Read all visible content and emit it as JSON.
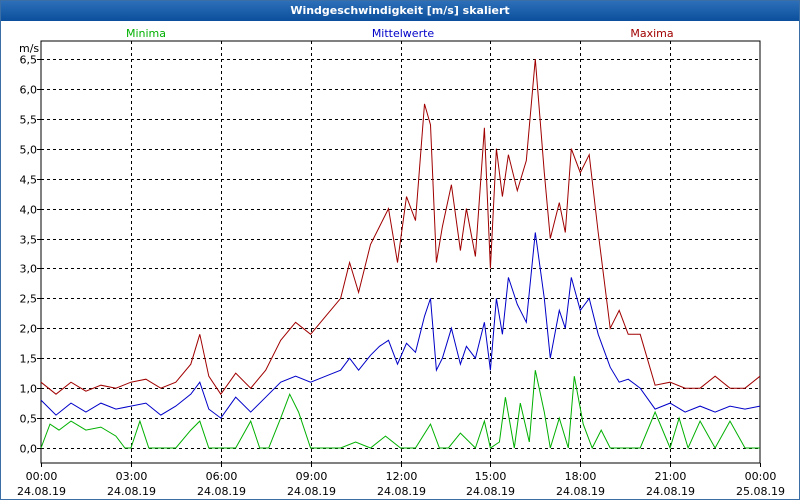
{
  "window": {
    "title": "Windgeschwindigkeit [m/s] skaliert"
  },
  "colors": {
    "minima": "#00b000",
    "mittelwerte": "#0000c8",
    "maxima": "#a00000",
    "title_bar": "#0b4f9c"
  },
  "chart_data": {
    "type": "line",
    "title": "Windgeschwindigkeit [m/s] skaliert",
    "ylabel": "m/s",
    "ylim": [
      -0.25,
      6.8
    ],
    "yticks": [
      "6,5",
      "6,0",
      "5,5",
      "5,0",
      "4,5",
      "4,0",
      "3,5",
      "3,0",
      "2,5",
      "2,0",
      "1,5",
      "1,0",
      "0,5",
      "0,0"
    ],
    "ytick_values": [
      6.5,
      6.0,
      5.5,
      5.0,
      4.5,
      4.0,
      3.5,
      3.0,
      2.5,
      2.0,
      1.5,
      1.0,
      0.5,
      0.0
    ],
    "xlim_hours": [
      0,
      24
    ],
    "x_tick_hours": [
      0,
      3,
      6,
      9,
      12,
      15,
      18,
      21,
      24
    ],
    "xticks": [
      {
        "time": "00:00",
        "date": "24.08.19"
      },
      {
        "time": "03:00",
        "date": "24.08.19"
      },
      {
        "time": "06:00",
        "date": "24.08.19"
      },
      {
        "time": "09:00",
        "date": "24.08.19"
      },
      {
        "time": "12:00",
        "date": "24.08.19"
      },
      {
        "time": "15:00",
        "date": "24.08.19"
      },
      {
        "time": "18:00",
        "date": "24.08.19"
      },
      {
        "time": "21:00",
        "date": "24.08.19"
      },
      {
        "time": "00:00",
        "date": "25.08.19"
      }
    ],
    "grid": true,
    "legend": [
      "Minima",
      "Mittelwerte",
      "Maxima"
    ],
    "series": [
      {
        "name": "Maxima",
        "color": "#a00000",
        "points": [
          [
            0,
            1.1
          ],
          [
            0.5,
            0.9
          ],
          [
            1,
            1.1
          ],
          [
            1.5,
            0.95
          ],
          [
            2,
            1.05
          ],
          [
            2.5,
            1.0
          ],
          [
            3,
            1.1
          ],
          [
            3.5,
            1.15
          ],
          [
            4,
            1.0
          ],
          [
            4.5,
            1.1
          ],
          [
            5,
            1.4
          ],
          [
            5.3,
            1.9
          ],
          [
            5.6,
            1.2
          ],
          [
            6,
            0.9
          ],
          [
            6.5,
            1.25
          ],
          [
            7,
            1.0
          ],
          [
            7.5,
            1.3
          ],
          [
            8,
            1.8
          ],
          [
            8.5,
            2.1
          ],
          [
            9,
            1.9
          ],
          [
            9.5,
            2.2
          ],
          [
            10,
            2.5
          ],
          [
            10.3,
            3.1
          ],
          [
            10.6,
            2.6
          ],
          [
            11,
            3.4
          ],
          [
            11.3,
            3.7
          ],
          [
            11.6,
            4.0
          ],
          [
            11.9,
            3.1
          ],
          [
            12.2,
            4.2
          ],
          [
            12.5,
            3.8
          ],
          [
            12.8,
            5.75
          ],
          [
            13.0,
            5.4
          ],
          [
            13.2,
            3.1
          ],
          [
            13.4,
            3.7
          ],
          [
            13.7,
            4.4
          ],
          [
            14.0,
            3.3
          ],
          [
            14.2,
            4.0
          ],
          [
            14.5,
            3.2
          ],
          [
            14.8,
            5.35
          ],
          [
            15.0,
            3.0
          ],
          [
            15.2,
            5.0
          ],
          [
            15.4,
            4.2
          ],
          [
            15.6,
            4.9
          ],
          [
            15.9,
            4.3
          ],
          [
            16.2,
            4.8
          ],
          [
            16.5,
            6.5
          ],
          [
            16.8,
            4.6
          ],
          [
            17.0,
            3.5
          ],
          [
            17.3,
            4.1
          ],
          [
            17.5,
            3.6
          ],
          [
            17.7,
            5.0
          ],
          [
            18.0,
            4.6
          ],
          [
            18.3,
            4.9
          ],
          [
            18.6,
            3.6
          ],
          [
            19.0,
            2.0
          ],
          [
            19.3,
            2.3
          ],
          [
            19.6,
            1.9
          ],
          [
            20.0,
            1.9
          ],
          [
            20.5,
            1.05
          ],
          [
            21,
            1.1
          ],
          [
            21.5,
            1.0
          ],
          [
            22,
            1.0
          ],
          [
            22.5,
            1.2
          ],
          [
            23,
            1.0
          ],
          [
            23.5,
            1.0
          ],
          [
            24,
            1.2
          ]
        ]
      },
      {
        "name": "Mittelwerte",
        "color": "#0000c8",
        "points": [
          [
            0,
            0.8
          ],
          [
            0.5,
            0.55
          ],
          [
            1,
            0.75
          ],
          [
            1.5,
            0.6
          ],
          [
            2,
            0.75
          ],
          [
            2.5,
            0.65
          ],
          [
            3,
            0.7
          ],
          [
            3.5,
            0.75
          ],
          [
            4,
            0.55
          ],
          [
            4.5,
            0.7
          ],
          [
            5,
            0.9
          ],
          [
            5.3,
            1.1
          ],
          [
            5.6,
            0.65
          ],
          [
            6,
            0.5
          ],
          [
            6.5,
            0.85
          ],
          [
            7,
            0.6
          ],
          [
            7.5,
            0.85
          ],
          [
            8,
            1.1
          ],
          [
            8.5,
            1.2
          ],
          [
            9,
            1.1
          ],
          [
            9.5,
            1.2
          ],
          [
            10,
            1.3
          ],
          [
            10.3,
            1.5
          ],
          [
            10.6,
            1.3
          ],
          [
            11,
            1.55
          ],
          [
            11.3,
            1.7
          ],
          [
            11.6,
            1.8
          ],
          [
            11.9,
            1.4
          ],
          [
            12.2,
            1.75
          ],
          [
            12.5,
            1.6
          ],
          [
            12.8,
            2.2
          ],
          [
            13.0,
            2.5
          ],
          [
            13.2,
            1.3
          ],
          [
            13.4,
            1.5
          ],
          [
            13.7,
            2.0
          ],
          [
            14.0,
            1.4
          ],
          [
            14.2,
            1.7
          ],
          [
            14.5,
            1.5
          ],
          [
            14.8,
            2.1
          ],
          [
            15.0,
            1.3
          ],
          [
            15.2,
            2.5
          ],
          [
            15.4,
            1.9
          ],
          [
            15.6,
            2.85
          ],
          [
            15.9,
            2.4
          ],
          [
            16.2,
            2.1
          ],
          [
            16.5,
            3.6
          ],
          [
            16.8,
            2.5
          ],
          [
            17.0,
            1.5
          ],
          [
            17.3,
            2.3
          ],
          [
            17.5,
            2.0
          ],
          [
            17.7,
            2.85
          ],
          [
            18.0,
            2.3
          ],
          [
            18.3,
            2.5
          ],
          [
            18.6,
            1.9
          ],
          [
            19.0,
            1.35
          ],
          [
            19.3,
            1.1
          ],
          [
            19.6,
            1.15
          ],
          [
            20.0,
            1.0
          ],
          [
            20.5,
            0.65
          ],
          [
            21,
            0.75
          ],
          [
            21.5,
            0.6
          ],
          [
            22,
            0.7
          ],
          [
            22.5,
            0.6
          ],
          [
            23,
            0.7
          ],
          [
            23.5,
            0.65
          ],
          [
            24,
            0.7
          ]
        ]
      },
      {
        "name": "Minima",
        "color": "#00b000",
        "points": [
          [
            0,
            0.0
          ],
          [
            0.3,
            0.4
          ],
          [
            0.6,
            0.3
          ],
          [
            1,
            0.45
          ],
          [
            1.5,
            0.3
          ],
          [
            2,
            0.35
          ],
          [
            2.5,
            0.2
          ],
          [
            2.8,
            0.0
          ],
          [
            3,
            0.0
          ],
          [
            3.3,
            0.45
          ],
          [
            3.6,
            0.0
          ],
          [
            4,
            0.0
          ],
          [
            4.5,
            0.0
          ],
          [
            5,
            0.3
          ],
          [
            5.3,
            0.45
          ],
          [
            5.6,
            0.0
          ],
          [
            6,
            0.0
          ],
          [
            6.5,
            0.0
          ],
          [
            7,
            0.45
          ],
          [
            7.3,
            0.0
          ],
          [
            7.6,
            0.0
          ],
          [
            8,
            0.5
          ],
          [
            8.3,
            0.9
          ],
          [
            8.6,
            0.6
          ],
          [
            9,
            0.0
          ],
          [
            9.5,
            0.0
          ],
          [
            10,
            0.0
          ],
          [
            10.5,
            0.1
          ],
          [
            11,
            0.0
          ],
          [
            11.5,
            0.2
          ],
          [
            12,
            0.0
          ],
          [
            12.5,
            0.0
          ],
          [
            13.0,
            0.4
          ],
          [
            13.3,
            0.0
          ],
          [
            13.6,
            0.0
          ],
          [
            14.0,
            0.25
          ],
          [
            14.5,
            0.0
          ],
          [
            14.8,
            0.45
          ],
          [
            15.0,
            0.0
          ],
          [
            15.3,
            0.1
          ],
          [
            15.5,
            0.85
          ],
          [
            15.8,
            0.0
          ],
          [
            16.0,
            0.75
          ],
          [
            16.3,
            0.1
          ],
          [
            16.5,
            1.3
          ],
          [
            16.8,
            0.6
          ],
          [
            17.0,
            0.0
          ],
          [
            17.3,
            0.5
          ],
          [
            17.6,
            0.0
          ],
          [
            17.8,
            1.2
          ],
          [
            18.1,
            0.4
          ],
          [
            18.4,
            0.0
          ],
          [
            18.7,
            0.3
          ],
          [
            19.0,
            0.0
          ],
          [
            19.5,
            0.0
          ],
          [
            20.0,
            0.0
          ],
          [
            20.5,
            0.6
          ],
          [
            21.0,
            0.0
          ],
          [
            21.3,
            0.5
          ],
          [
            21.6,
            0.0
          ],
          [
            22.0,
            0.45
          ],
          [
            22.5,
            0.0
          ],
          [
            23.0,
            0.45
          ],
          [
            23.5,
            0.0
          ],
          [
            24.0,
            0.0
          ]
        ]
      }
    ]
  }
}
